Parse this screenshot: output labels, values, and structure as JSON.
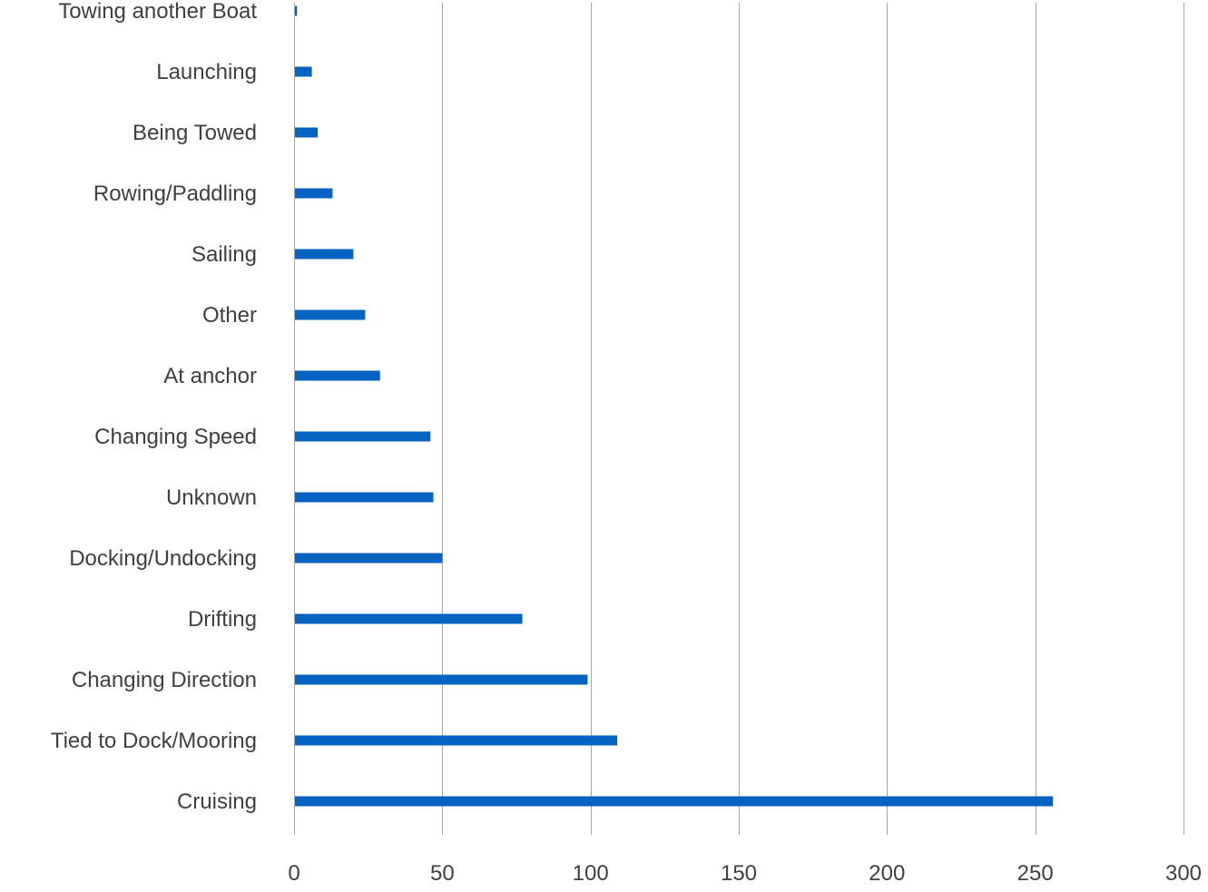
{
  "chart_data": {
    "type": "bar",
    "orientation": "horizontal",
    "title": "",
    "xlabel": "",
    "ylabel": "",
    "categories": [
      "Towing another Boat",
      "Launching",
      "Being Towed",
      "Rowing/Paddling",
      "Sailing",
      "Other",
      "At anchor",
      "Changing Speed",
      "Unknown",
      "Docking/Undocking",
      "Drifting",
      "Changing Direction",
      "Tied to Dock/Mooring",
      "Cruising"
    ],
    "values": [
      1,
      6,
      8,
      13,
      20,
      24,
      29,
      46,
      47,
      50,
      77,
      99,
      109,
      256
    ],
    "xlim": [
      0,
      300
    ],
    "xticks": [
      "0",
      "50",
      "100",
      "150",
      "200",
      "250",
      "300"
    ],
    "bar_color": "#0563C1",
    "grid": "vertical",
    "legend": "none"
  }
}
